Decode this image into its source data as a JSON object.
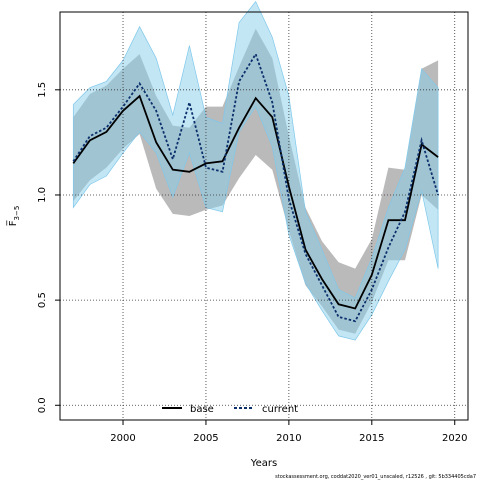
{
  "chart_data": {
    "type": "line",
    "title": "",
    "xlabel": "Years",
    "ylabel": "F̅",
    "ylabel_subscript": "3−5",
    "xlim": [
      1996.2,
      2020.8
    ],
    "ylim": [
      -0.07,
      1.87
    ],
    "x_ticks": [
      2000,
      2005,
      2010,
      2015,
      2020
    ],
    "x_tick_labels": [
      "2000",
      "2005",
      "2010",
      "2015",
      "2020"
    ],
    "y_ticks": [
      0.0,
      0.5,
      1.0,
      1.5
    ],
    "y_tick_labels": [
      "0.0",
      "0.5",
      "1.0",
      "1.5"
    ],
    "grid": true,
    "legend_position": "bottom-center",
    "x": [
      1997,
      1998,
      1999,
      2000,
      2001,
      2002,
      2003,
      2004,
      2005,
      2006,
      2007,
      2008,
      2009,
      2010,
      2011,
      2012,
      2013,
      2014,
      2015,
      2016,
      2017,
      2018,
      2019
    ],
    "series": [
      {
        "name": "base",
        "color": "#000000",
        "values": [
          1.15,
          1.26,
          1.3,
          1.4,
          1.47,
          1.25,
          1.12,
          1.11,
          1.15,
          1.16,
          1.32,
          1.46,
          1.37,
          1.04,
          0.74,
          0.6,
          0.48,
          0.46,
          0.62,
          0.88,
          0.88,
          1.24,
          1.18
        ],
        "lower": [
          0.97,
          1.07,
          1.13,
          1.22,
          1.29,
          1.03,
          0.91,
          0.9,
          0.93,
          0.95,
          1.08,
          1.19,
          1.12,
          0.83,
          0.57,
          0.47,
          0.36,
          0.34,
          0.49,
          0.69,
          0.69,
          1.0,
          0.93
        ],
        "upper": [
          1.37,
          1.48,
          1.52,
          1.6,
          1.67,
          1.47,
          1.33,
          1.32,
          1.42,
          1.42,
          1.61,
          1.79,
          1.65,
          1.28,
          0.94,
          0.78,
          0.68,
          0.65,
          0.79,
          1.13,
          1.12,
          1.6,
          1.64
        ]
      },
      {
        "name": "current",
        "color": "#0a2f6b",
        "band_color": "#87ceeb",
        "values": [
          1.16,
          1.28,
          1.32,
          1.42,
          1.53,
          1.4,
          1.17,
          1.44,
          1.13,
          1.11,
          1.54,
          1.67,
          1.44,
          0.98,
          0.72,
          0.57,
          0.42,
          0.4,
          0.55,
          0.75,
          0.92,
          1.26,
          1.0
        ],
        "lower": [
          0.94,
          1.05,
          1.09,
          1.2,
          1.3,
          1.2,
          0.99,
          1.2,
          0.94,
          0.92,
          1.3,
          1.42,
          1.23,
          0.81,
          0.58,
          0.45,
          0.33,
          0.31,
          0.43,
          0.59,
          0.74,
          1.02,
          0.65
        ],
        "upper": [
          1.43,
          1.51,
          1.54,
          1.64,
          1.8,
          1.65,
          1.38,
          1.71,
          1.37,
          1.34,
          1.82,
          1.92,
          1.75,
          1.47,
          0.92,
          0.74,
          0.55,
          0.51,
          0.7,
          0.94,
          1.13,
          1.6,
          1.51
        ]
      }
    ]
  },
  "footer": "stockassessment.org, coddat2020_ver01_unscaled, r12526 , git: 5b334405cda7"
}
